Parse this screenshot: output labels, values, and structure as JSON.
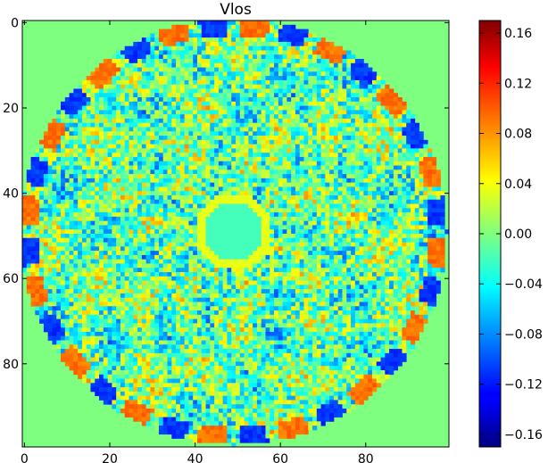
{
  "chart_data": {
    "type": "heatmap",
    "title": "Vlos",
    "xlabel": "",
    "ylabel": "",
    "xlim": [
      -0.5,
      99.5
    ],
    "ylim": [
      99.5,
      -0.5
    ],
    "x_ticks": [
      0,
      20,
      40,
      60,
      80
    ],
    "y_ticks": [
      0,
      20,
      40,
      60,
      80
    ],
    "grid": false,
    "colormap": "jet",
    "colorbar": {
      "range": [
        -0.17,
        0.17
      ],
      "ticks": [
        0.16,
        0.12,
        0.08,
        0.04,
        0.0,
        -0.04,
        -0.08,
        -0.12,
        -0.16
      ],
      "tick_labels": [
        "0.16",
        "0.12",
        "0.08",
        "0.04",
        "0.00",
        "−0.04",
        "−0.08",
        "−0.12",
        "−0.16"
      ]
    },
    "grid_size": [
      100,
      100
    ],
    "background_value": 0.0,
    "disk": {
      "center": [
        49,
        49
      ],
      "outer_radius": 50,
      "inner_ring_radius": 8,
      "inner_ring_value": 0.035,
      "inner_disk_value": -0.02,
      "typical_range": [
        -0.12,
        0.1
      ]
    }
  }
}
